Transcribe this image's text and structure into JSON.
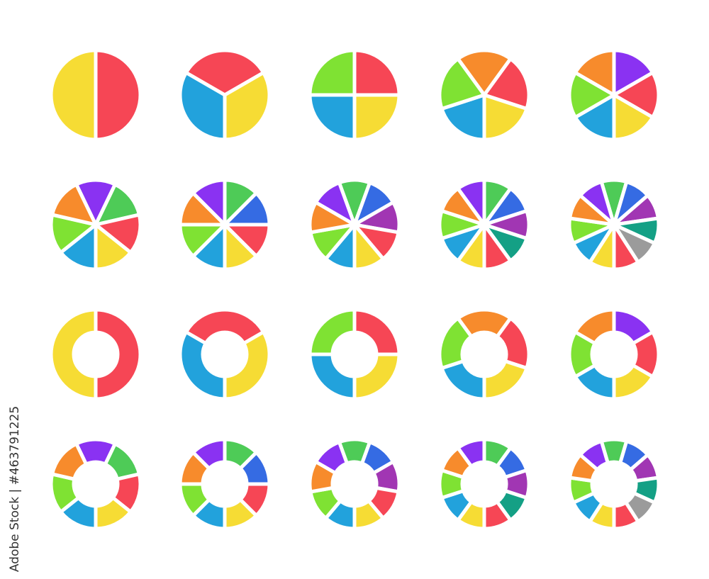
{
  "credit": "Adobe Stock | #463791225",
  "colors": {
    "red": "#f64655",
    "yellow": "#f6dc34",
    "blue": "#22a2dc",
    "lime": "#7fe233",
    "orange": "#f78b2c",
    "purple": "#8a32f2",
    "green": "#4ecb57",
    "royal": "#356be3",
    "violet": "#a136b3",
    "teal": "#14a085",
    "gray": "#9b9b9b"
  },
  "chart_data": [
    {
      "type": "pie",
      "slices": [
        "red",
        "yellow"
      ],
      "values": [
        1,
        1
      ],
      "start_offset": "boundary-at-top"
    },
    {
      "type": "pie",
      "slices": [
        "red",
        "yellow",
        "blue"
      ],
      "values": [
        1,
        1,
        1
      ],
      "start_offset": "slice-centered-at-top"
    },
    {
      "type": "pie",
      "slices": [
        "red",
        "yellow",
        "blue",
        "lime"
      ],
      "values": [
        1,
        1,
        1,
        1
      ],
      "start_offset": "boundary-at-top"
    },
    {
      "type": "pie",
      "slices": [
        "orange",
        "red",
        "yellow",
        "blue",
        "lime"
      ],
      "values": [
        1,
        1,
        1,
        1,
        1
      ],
      "start_offset": "slice-centered-at-top"
    },
    {
      "type": "pie",
      "slices": [
        "purple",
        "red",
        "yellow",
        "blue",
        "lime",
        "orange"
      ],
      "values": [
        1,
        1,
        1,
        1,
        1,
        1
      ],
      "start_offset": "boundary-at-top"
    },
    {
      "type": "pie",
      "slices": [
        "purple",
        "green",
        "red",
        "yellow",
        "blue",
        "lime",
        "orange"
      ],
      "values": [
        1,
        1,
        1,
        1,
        1,
        1,
        1
      ],
      "start_offset": "slice-centered-at-top"
    },
    {
      "type": "pie",
      "slices": [
        "green",
        "royal",
        "red",
        "yellow",
        "blue",
        "lime",
        "orange",
        "purple"
      ],
      "values": [
        1,
        1,
        1,
        1,
        1,
        1,
        1,
        1
      ],
      "start_offset": "boundary-at-top"
    },
    {
      "type": "pie",
      "slices": [
        "green",
        "royal",
        "violet",
        "red",
        "yellow",
        "blue",
        "lime",
        "orange",
        "purple"
      ],
      "values": [
        1,
        1,
        1,
        1,
        1,
        1,
        1,
        1,
        1
      ],
      "start_offset": "slice-centered-at-top"
    },
    {
      "type": "pie",
      "slices": [
        "green",
        "royal",
        "violet",
        "teal",
        "red",
        "yellow",
        "blue",
        "lime",
        "orange",
        "purple"
      ],
      "values": [
        1,
        1,
        1,
        1,
        1,
        1,
        1,
        1,
        1,
        1
      ],
      "start_offset": "boundary-at-top"
    },
    {
      "type": "pie",
      "slices": [
        "green",
        "royal",
        "violet",
        "teal",
        "gray",
        "red",
        "yellow",
        "blue",
        "lime",
        "orange",
        "purple"
      ],
      "values": [
        1,
        1,
        1,
        1,
        1,
        1,
        1,
        1,
        1,
        1,
        1
      ],
      "start_offset": "slice-centered-at-top"
    },
    {
      "type": "donut",
      "slices": [
        "red",
        "yellow"
      ],
      "values": [
        1,
        1
      ],
      "start_offset": "boundary-at-top"
    },
    {
      "type": "donut",
      "slices": [
        "red",
        "yellow",
        "blue"
      ],
      "values": [
        1,
        1,
        1
      ],
      "start_offset": "slice-centered-at-top"
    },
    {
      "type": "donut",
      "slices": [
        "red",
        "yellow",
        "blue",
        "lime"
      ],
      "values": [
        1,
        1,
        1,
        1
      ],
      "start_offset": "boundary-at-top"
    },
    {
      "type": "donut",
      "slices": [
        "orange",
        "red",
        "yellow",
        "blue",
        "lime"
      ],
      "values": [
        1,
        1,
        1,
        1,
        1
      ],
      "start_offset": "slice-centered-at-top"
    },
    {
      "type": "donut",
      "slices": [
        "purple",
        "red",
        "yellow",
        "blue",
        "lime",
        "orange"
      ],
      "values": [
        1,
        1,
        1,
        1,
        1,
        1
      ],
      "start_offset": "boundary-at-top"
    },
    {
      "type": "donut",
      "slices": [
        "purple",
        "green",
        "red",
        "yellow",
        "blue",
        "lime",
        "orange"
      ],
      "values": [
        1,
        1,
        1,
        1,
        1,
        1,
        1
      ],
      "start_offset": "slice-centered-at-top"
    },
    {
      "type": "donut",
      "slices": [
        "green",
        "royal",
        "red",
        "yellow",
        "blue",
        "lime",
        "orange",
        "purple"
      ],
      "values": [
        1,
        1,
        1,
        1,
        1,
        1,
        1,
        1
      ],
      "start_offset": "boundary-at-top"
    },
    {
      "type": "donut",
      "slices": [
        "green",
        "royal",
        "violet",
        "red",
        "yellow",
        "blue",
        "lime",
        "orange",
        "purple"
      ],
      "values": [
        1,
        1,
        1,
        1,
        1,
        1,
        1,
        1,
        1
      ],
      "start_offset": "slice-centered-at-top"
    },
    {
      "type": "donut",
      "slices": [
        "green",
        "royal",
        "violet",
        "teal",
        "red",
        "yellow",
        "blue",
        "lime",
        "orange",
        "purple"
      ],
      "values": [
        1,
        1,
        1,
        1,
        1,
        1,
        1,
        1,
        1,
        1
      ],
      "start_offset": "boundary-at-top"
    },
    {
      "type": "donut",
      "slices": [
        "green",
        "royal",
        "violet",
        "teal",
        "gray",
        "red",
        "yellow",
        "blue",
        "lime",
        "orange",
        "purple"
      ],
      "values": [
        1,
        1,
        1,
        1,
        1,
        1,
        1,
        1,
        1,
        1,
        1
      ],
      "start_offset": "slice-centered-at-top"
    }
  ]
}
